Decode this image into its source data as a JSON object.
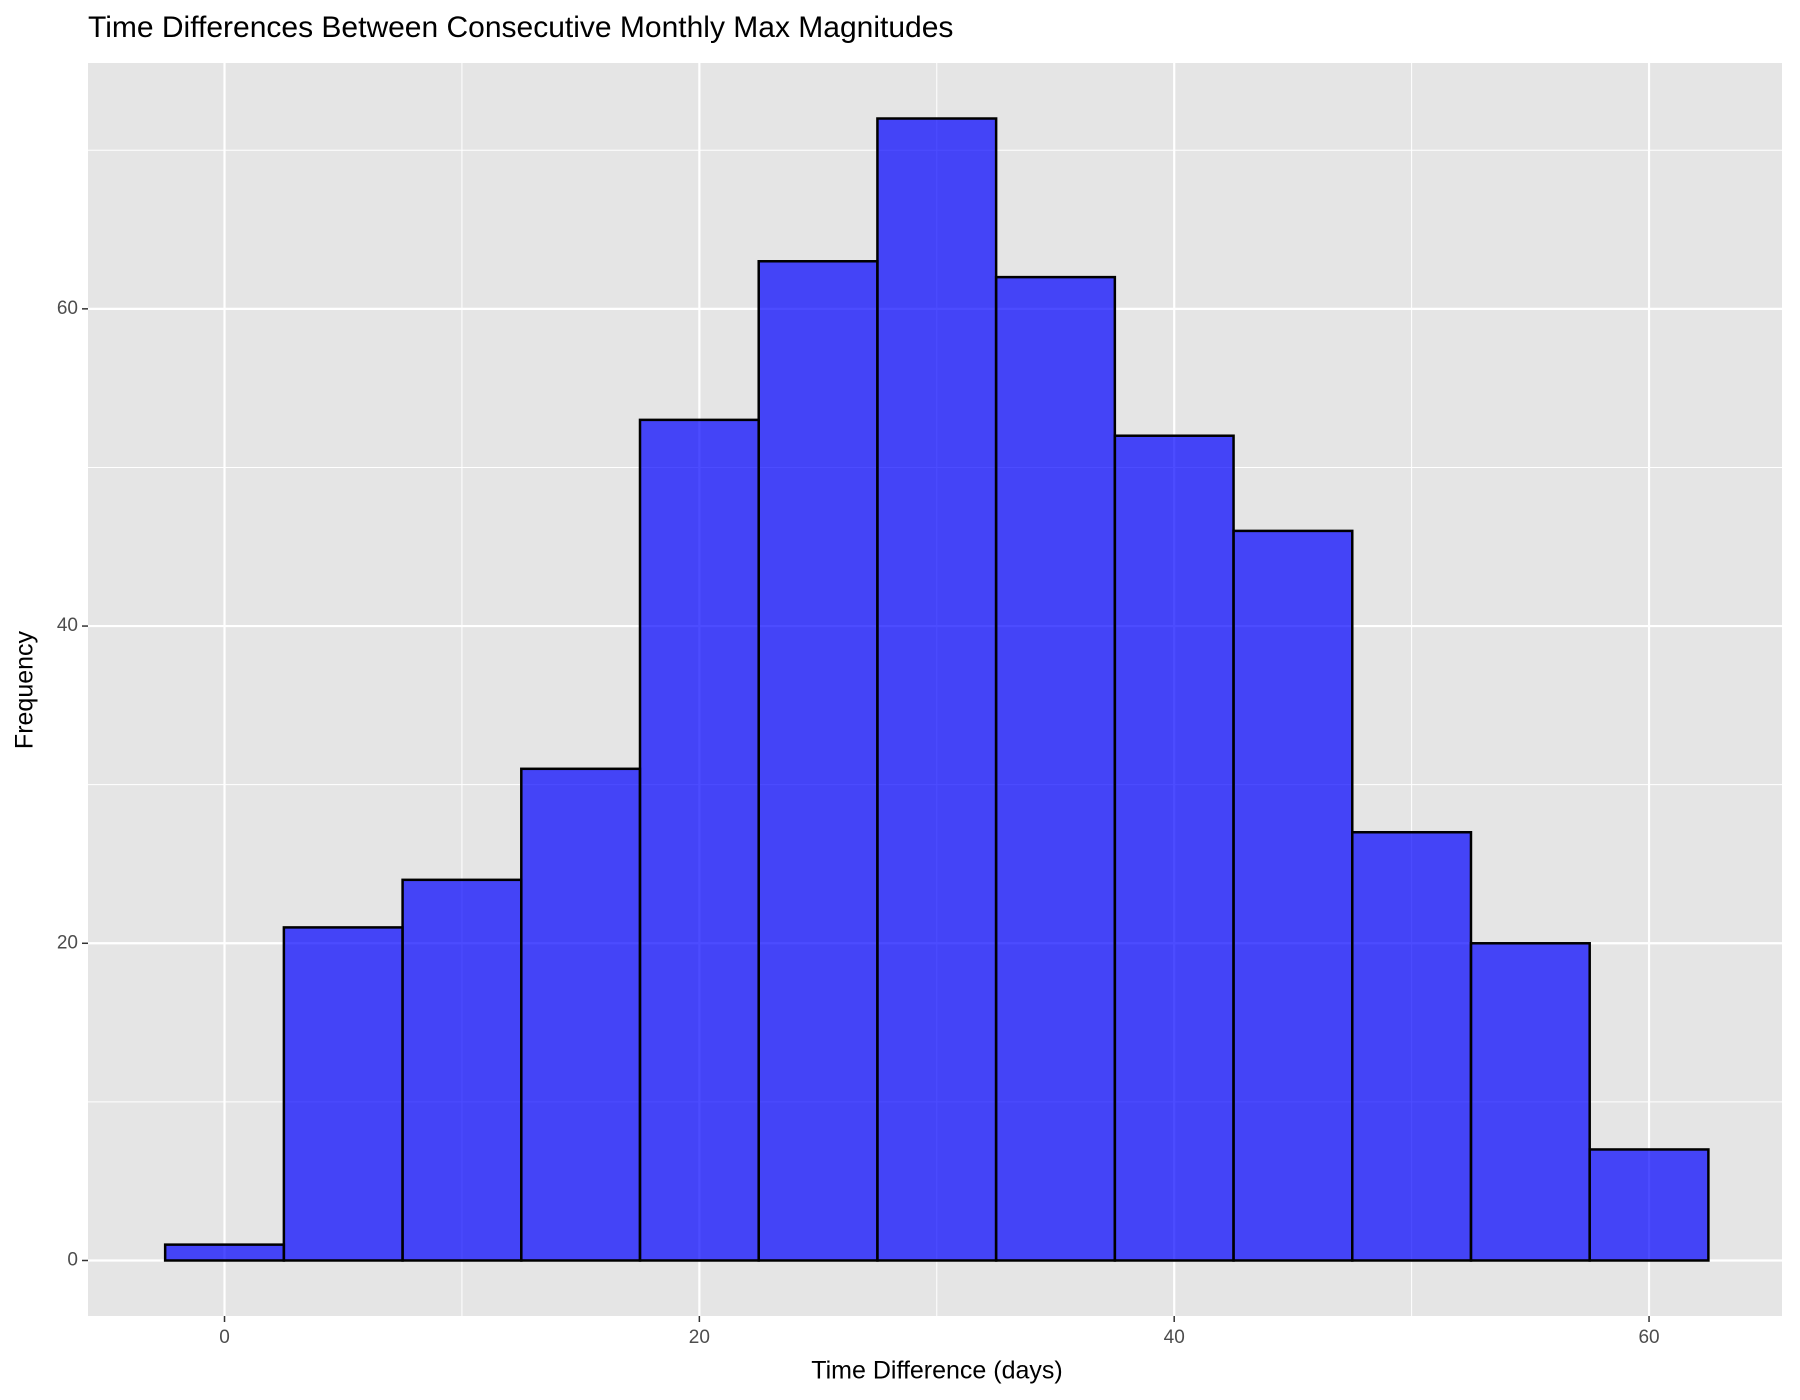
{
  "chart_data": {
    "type": "histogram",
    "title": "Time Differences Between Consecutive Monthly Max Magnitudes",
    "x_label": "Time Difference (days)",
    "y_label": "Frequency",
    "bins": [
      -2.5,
      2.5,
      7.5,
      12.5,
      17.5,
      22.5,
      27.5,
      32.5,
      37.5,
      42.5,
      47.5,
      52.5,
      57.5,
      62.5
    ],
    "counts": [
      1,
      21,
      24,
      31,
      53,
      63,
      72,
      62,
      52,
      46,
      27,
      20,
      7
    ],
    "color": "#0000ff",
    "opacity": 0.7,
    "edge_color": "#000000",
    "xlim": [
      -5.75,
      65.6
    ],
    "xticks": [
      0,
      20,
      40,
      60
    ],
    "ylim": [
      -3.5,
      75.5
    ],
    "yticks": [
      0,
      20,
      40,
      60
    ],
    "grid": true
  }
}
